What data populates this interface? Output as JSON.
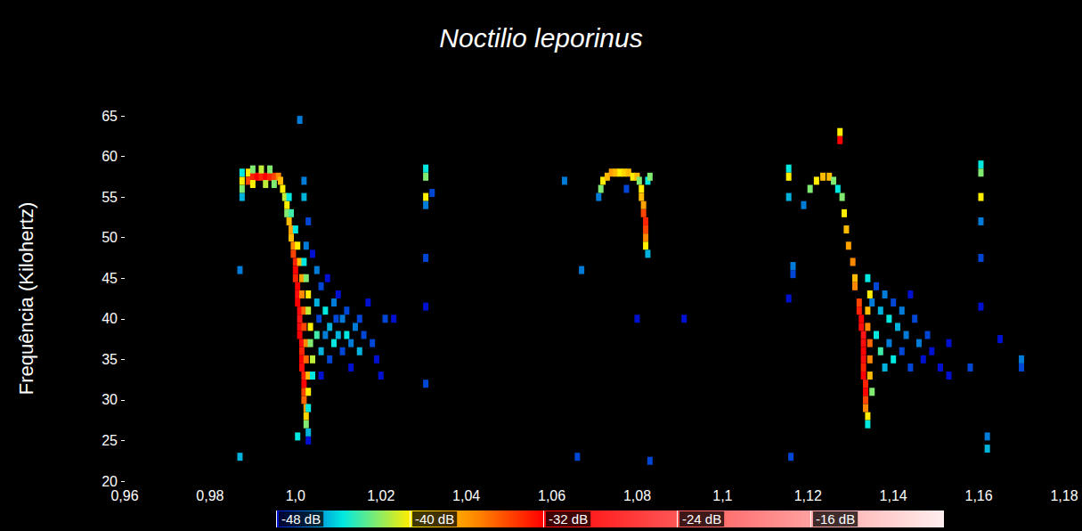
{
  "chart_data": {
    "type": "spectrogram",
    "title": "Noctilio leporinus",
    "y_label": "Frequência (Kilohertz)",
    "xlim": [
      0.96,
      1.18
    ],
    "xticks": [
      {
        "value": 0.96,
        "label": "0,96"
      },
      {
        "value": 0.98,
        "label": "0,98"
      },
      {
        "value": 1.0,
        "label": "1,0"
      },
      {
        "value": 1.02,
        "label": "1,02"
      },
      {
        "value": 1.04,
        "label": "1,04"
      },
      {
        "value": 1.06,
        "label": "1,06"
      },
      {
        "value": 1.08,
        "label": "1,08"
      },
      {
        "value": 1.1,
        "label": "1,1"
      },
      {
        "value": 1.12,
        "label": "1,12"
      },
      {
        "value": 1.14,
        "label": "1,14"
      },
      {
        "value": 1.16,
        "label": "1,16"
      },
      {
        "value": 1.18,
        "label": "1,18"
      }
    ],
    "ylim": [
      20,
      65
    ],
    "yticks": [
      20,
      25,
      30,
      35,
      40,
      45,
      50,
      55,
      60,
      65
    ],
    "grid": false,
    "colorbar": {
      "range": [
        -48,
        -8
      ],
      "ticks": [
        {
          "value": -48,
          "label": "-48 dB"
        },
        {
          "value": -40,
          "label": "-40 dB"
        },
        {
          "value": -32,
          "label": "-32 dB"
        },
        {
          "value": -24,
          "label": "-24 dB"
        },
        {
          "value": -16,
          "label": "-16 dB"
        }
      ]
    },
    "cells": [
      [
        0.9875,
        55,
        -45
      ],
      [
        0.9875,
        56,
        -42
      ],
      [
        0.9875,
        57,
        -40
      ],
      [
        0.9875,
        58,
        -44
      ],
      [
        0.989,
        58,
        -40
      ],
      [
        0.989,
        57,
        -34
      ],
      [
        0.99,
        57.5,
        -33
      ],
      [
        0.991,
        57.5,
        -32
      ],
      [
        0.992,
        57.5,
        -33
      ],
      [
        0.993,
        57.5,
        -32
      ],
      [
        0.994,
        57.5,
        -33
      ],
      [
        0.995,
        57.5,
        -34
      ],
      [
        0.996,
        57.5,
        -36
      ],
      [
        0.99,
        58.4,
        -42
      ],
      [
        0.992,
        58.4,
        -41
      ],
      [
        0.994,
        58.4,
        -42
      ],
      [
        0.99,
        56.6,
        -40
      ],
      [
        0.993,
        56.6,
        -41
      ],
      [
        0.995,
        56.6,
        -42
      ],
      [
        0.9965,
        57,
        -38
      ],
      [
        0.997,
        56,
        -40
      ],
      [
        0.9975,
        55,
        -41
      ],
      [
        0.998,
        54,
        -40
      ],
      [
        0.998,
        53,
        -42
      ],
      [
        0.9985,
        52,
        -38
      ],
      [
        0.999,
        51,
        -37
      ],
      [
        0.999,
        50,
        -38
      ],
      [
        0.9995,
        49,
        -36
      ],
      [
        0.9995,
        48,
        -34
      ],
      [
        1.0,
        47,
        -33
      ],
      [
        1.0,
        46,
        -32
      ],
      [
        1.0,
        45,
        -33
      ],
      [
        1.0005,
        44,
        -32
      ],
      [
        1.0005,
        43,
        -31
      ],
      [
        1.0005,
        42,
        -32
      ],
      [
        1.001,
        41,
        -31
      ],
      [
        1.001,
        40,
        -30
      ],
      [
        1.001,
        39,
        -31
      ],
      [
        1.001,
        38,
        -32
      ],
      [
        1.0015,
        37,
        -31
      ],
      [
        1.0015,
        36,
        -33
      ],
      [
        1.0015,
        35,
        -32
      ],
      [
        1.0015,
        34,
        -31
      ],
      [
        1.002,
        33,
        -33
      ],
      [
        1.002,
        32,
        -32
      ],
      [
        1.002,
        31,
        -34
      ],
      [
        1.002,
        30,
        -35
      ],
      [
        1.0025,
        29,
        -37
      ],
      [
        1.0025,
        28,
        -39
      ],
      [
        1.0025,
        27,
        -42
      ],
      [
        1.003,
        26,
        -45
      ],
      [
        1.003,
        25,
        -48
      ],
      [
        0.9985,
        55,
        -44
      ],
      [
        0.999,
        53,
        -43
      ],
      [
        1.0,
        51,
        -44
      ],
      [
        1.0005,
        49,
        -40
      ],
      [
        1.001,
        47,
        -38
      ],
      [
        1.0015,
        45,
        -37
      ],
      [
        1.0015,
        43,
        -36
      ],
      [
        1.002,
        41,
        -35
      ],
      [
        1.002,
        39,
        -34
      ],
      [
        1.0025,
        37,
        -36
      ],
      [
        1.0025,
        35,
        -35
      ],
      [
        1.003,
        33,
        -38
      ],
      [
        1.003,
        31,
        -40
      ],
      [
        1.003,
        29,
        -44
      ],
      [
        1.002,
        47,
        -44
      ],
      [
        1.0025,
        45,
        -42
      ],
      [
        1.003,
        43,
        -40
      ],
      [
        1.003,
        41,
        -41
      ],
      [
        1.0035,
        39,
        -40
      ],
      [
        1.0035,
        37,
        -42
      ],
      [
        1.004,
        35,
        -41
      ],
      [
        1.004,
        33,
        -44
      ],
      [
        1.005,
        46,
        -46
      ],
      [
        1.005,
        42,
        -45
      ],
      [
        1.005,
        38,
        -43
      ],
      [
        1.0055,
        40,
        -47
      ],
      [
        1.006,
        44,
        -47
      ],
      [
        1.006,
        36,
        -45
      ],
      [
        1.006,
        33,
        -48
      ],
      [
        1.007,
        41,
        -44
      ],
      [
        1.007,
        38,
        -46
      ],
      [
        1.0075,
        45,
        -48
      ],
      [
        1.008,
        39,
        -45
      ],
      [
        1.008,
        35,
        -47
      ],
      [
        1.009,
        42,
        -46
      ],
      [
        1.009,
        37,
        -44
      ],
      [
        1.0095,
        40,
        -47
      ],
      [
        1.01,
        38,
        -45
      ],
      [
        1.01,
        43,
        -48
      ],
      [
        1.011,
        36,
        -47
      ],
      [
        1.011,
        40,
        -46
      ],
      [
        1.012,
        38,
        -44
      ],
      [
        1.012,
        41,
        -47
      ],
      [
        1.013,
        37,
        -46
      ],
      [
        1.013,
        34,
        -48
      ],
      [
        1.014,
        39,
        -46
      ],
      [
        1.015,
        40,
        -47
      ],
      [
        1.015,
        36,
        -45
      ],
      [
        1.016,
        38,
        -47
      ],
      [
        1.017,
        42,
        -48
      ],
      [
        1.018,
        37,
        -47
      ],
      [
        1.019,
        35,
        -48
      ],
      [
        1.02,
        33,
        -48
      ],
      [
        1.021,
        40,
        -47
      ],
      [
        1.023,
        40,
        -48
      ],
      [
        1.0025,
        49,
        -46
      ],
      [
        1.003,
        52,
        -47
      ],
      [
        1.004,
        48,
        -48
      ],
      [
        1.002,
        57,
        -46
      ],
      [
        1.002,
        55,
        -45
      ],
      [
        1.001,
        64.5,
        -46
      ],
      [
        0.987,
        46,
        -46
      ],
      [
        0.987,
        23,
        -45
      ],
      [
        1.0005,
        25.5,
        -44
      ],
      [
        1.0305,
        58.5,
        -44
      ],
      [
        1.0305,
        57.5,
        -42
      ],
      [
        1.0305,
        55,
        -40
      ],
      [
        1.0305,
        54,
        -46
      ],
      [
        1.0305,
        47.5,
        -47
      ],
      [
        1.0305,
        41.5,
        -48
      ],
      [
        1.0305,
        32,
        -47
      ],
      [
        1.032,
        55.5,
        -47
      ],
      [
        1.063,
        57,
        -46
      ],
      [
        1.066,
        23,
        -47
      ],
      [
        1.067,
        46,
        -46
      ],
      [
        1.071,
        55,
        -46
      ],
      [
        1.0715,
        56,
        -42
      ],
      [
        1.072,
        57,
        -40
      ],
      [
        1.073,
        57.5,
        -38
      ],
      [
        1.074,
        58,
        -37
      ],
      [
        1.075,
        58,
        -38
      ],
      [
        1.076,
        58,
        -40
      ],
      [
        1.077,
        58,
        -39
      ],
      [
        1.078,
        58,
        -38
      ],
      [
        1.079,
        57.5,
        -40
      ],
      [
        1.08,
        57.5,
        -38
      ],
      [
        1.0805,
        57,
        -42
      ],
      [
        1.081,
        56,
        -40
      ],
      [
        1.081,
        55,
        -38
      ],
      [
        1.0815,
        54,
        -37
      ],
      [
        1.0815,
        53,
        -34
      ],
      [
        1.082,
        52,
        -33
      ],
      [
        1.082,
        51,
        -34
      ],
      [
        1.082,
        50,
        -36
      ],
      [
        1.082,
        49,
        -40
      ],
      [
        1.0825,
        48,
        -45
      ],
      [
        1.0825,
        57,
        -44
      ],
      [
        1.083,
        57.5,
        -42
      ],
      [
        1.0775,
        56,
        -47
      ],
      [
        1.08,
        40,
        -48
      ],
      [
        1.083,
        22.5,
        -47
      ],
      [
        1.091,
        40,
        -48
      ],
      [
        1.1155,
        58.5,
        -44
      ],
      [
        1.1155,
        57.5,
        -40
      ],
      [
        1.1155,
        55,
        -45
      ],
      [
        1.1165,
        46.5,
        -46
      ],
      [
        1.1165,
        45.5,
        -47
      ],
      [
        1.1155,
        42.5,
        -48
      ],
      [
        1.116,
        23,
        -47
      ],
      [
        1.119,
        54,
        -46
      ],
      [
        1.1205,
        56,
        -42
      ],
      [
        1.122,
        57,
        -40
      ],
      [
        1.1235,
        57.5,
        -38
      ],
      [
        1.125,
        57.5,
        -38
      ],
      [
        1.126,
        57,
        -42
      ],
      [
        1.127,
        56,
        -44
      ],
      [
        1.128,
        55,
        -42
      ],
      [
        1.1285,
        53,
        -40
      ],
      [
        1.129,
        51,
        -38
      ],
      [
        1.1295,
        49,
        -37
      ],
      [
        1.1305,
        47,
        -36
      ],
      [
        1.131,
        45,
        -38
      ],
      [
        1.131,
        44,
        -36
      ],
      [
        1.132,
        42,
        -34
      ],
      [
        1.132,
        41,
        -33
      ],
      [
        1.1325,
        40,
        -32
      ],
      [
        1.1325,
        39,
        -31
      ],
      [
        1.133,
        38,
        -30
      ],
      [
        1.133,
        37,
        -31
      ],
      [
        1.133,
        36,
        -32
      ],
      [
        1.133,
        35,
        -31
      ],
      [
        1.133,
        34,
        -33
      ],
      [
        1.133,
        33,
        -32
      ],
      [
        1.1335,
        32,
        -33
      ],
      [
        1.1335,
        31,
        -32
      ],
      [
        1.1335,
        30,
        -34
      ],
      [
        1.1335,
        29,
        -36
      ],
      [
        1.134,
        28,
        -40
      ],
      [
        1.134,
        27,
        -44
      ],
      [
        1.1275,
        63,
        -40
      ],
      [
        1.1275,
        62,
        -32
      ],
      [
        1.134,
        41,
        -38
      ],
      [
        1.134,
        39,
        -36
      ],
      [
        1.1345,
        37,
        -35
      ],
      [
        1.1345,
        35,
        -36
      ],
      [
        1.1345,
        33,
        -38
      ],
      [
        1.135,
        31,
        -42
      ],
      [
        1.1345,
        43,
        -40
      ],
      [
        1.134,
        45,
        -44
      ],
      [
        1.135,
        42,
        -46
      ],
      [
        1.136,
        44,
        -47
      ],
      [
        1.136,
        38,
        -44
      ],
      [
        1.137,
        41,
        -45
      ],
      [
        1.137,
        36,
        -43
      ],
      [
        1.138,
        43,
        -46
      ],
      [
        1.138,
        34,
        -45
      ],
      [
        1.139,
        40,
        -44
      ],
      [
        1.139,
        37,
        -46
      ],
      [
        1.14,
        42,
        -47
      ],
      [
        1.14,
        35,
        -44
      ],
      [
        1.141,
        39,
        -45
      ],
      [
        1.142,
        41,
        -46
      ],
      [
        1.142,
        36,
        -47
      ],
      [
        1.143,
        38,
        -46
      ],
      [
        1.144,
        43,
        -48
      ],
      [
        1.144,
        34,
        -47
      ],
      [
        1.145,
        40,
        -47
      ],
      [
        1.146,
        37,
        -46
      ],
      [
        1.147,
        35,
        -48
      ],
      [
        1.148,
        38,
        -47
      ],
      [
        1.149,
        36,
        -48
      ],
      [
        1.151,
        34,
        -48
      ],
      [
        1.153,
        37,
        -48
      ],
      [
        1.153,
        33,
        -48
      ],
      [
        1.1605,
        59,
        -44
      ],
      [
        1.1605,
        58,
        -42
      ],
      [
        1.1605,
        55,
        -40
      ],
      [
        1.1605,
        52,
        -46
      ],
      [
        1.1605,
        47.5,
        -47
      ],
      [
        1.1605,
        41.5,
        -48
      ],
      [
        1.158,
        34,
        -47
      ],
      [
        1.162,
        25.5,
        -46
      ],
      [
        1.162,
        24,
        -45
      ],
      [
        1.165,
        37.5,
        -48
      ],
      [
        1.17,
        35,
        -46
      ],
      [
        1.17,
        34,
        -47
      ]
    ]
  }
}
